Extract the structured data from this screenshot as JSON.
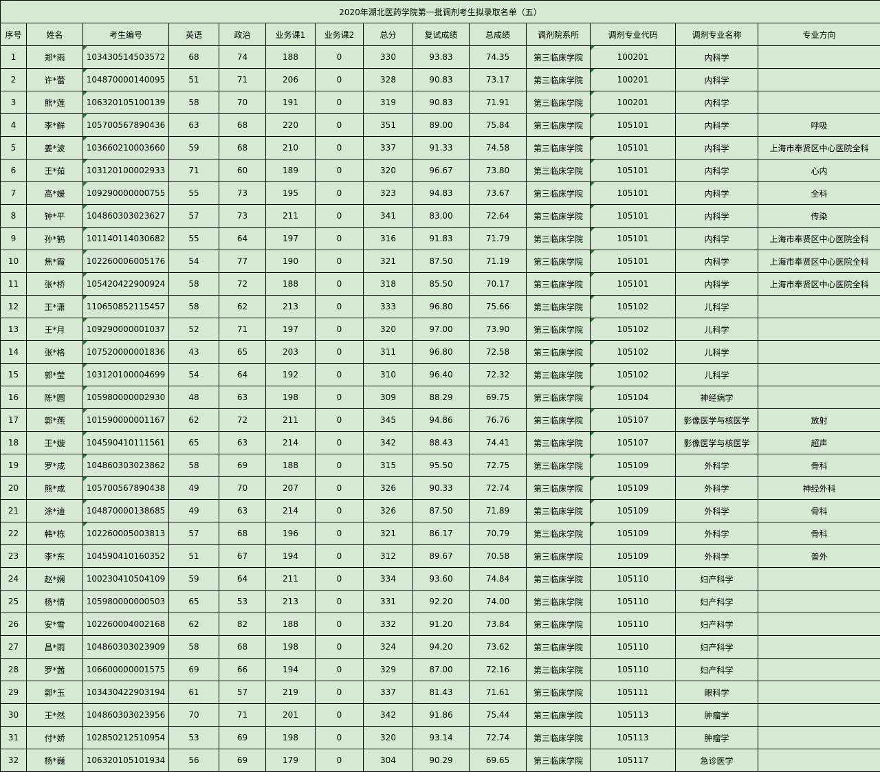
{
  "title": "2020年湖北医药学院第一批调剂考生拟录取名单（五）",
  "colors": {
    "sheet_background": "#d6ead3",
    "grid_line": "#000000",
    "text": "#000000",
    "text_indicator_triangle": "#1e7e24"
  },
  "table": {
    "columns": [
      "序号",
      "姓名",
      "考生编号",
      "英语",
      "政治",
      "业务课1",
      "业务课2",
      "总分",
      "复试成绩",
      "总成绩",
      "调剂院系所",
      "调剂专业代码",
      "调剂专业名称",
      "专业方向"
    ],
    "column_keys": [
      "index",
      "name",
      "candidate-id",
      "english",
      "politics",
      "course1",
      "course2",
      "total-score",
      "retest-score",
      "final-score",
      "department",
      "major-code",
      "major-name",
      "major-direction"
    ],
    "rows": [
      {
        "indicator": true,
        "cells": [
          "1",
          "郑*雨",
          "103430514503572",
          "68",
          "74",
          "188",
          "0",
          "330",
          "93.83",
          "74.35",
          "第三临床学院",
          "100201",
          "内科学",
          ""
        ]
      },
      {
        "indicator": true,
        "cells": [
          "2",
          "许*蕾",
          "104870000140095",
          "51",
          "71",
          "206",
          "0",
          "328",
          "90.83",
          "73.17",
          "第三临床学院",
          "100201",
          "内科学",
          ""
        ]
      },
      {
        "indicator": true,
        "cells": [
          "3",
          "熊*莲",
          "106320105100139",
          "58",
          "70",
          "191",
          "0",
          "319",
          "90.83",
          "71.91",
          "第三临床学院",
          "100201",
          "内科学",
          ""
        ]
      },
      {
        "indicator": true,
        "cells": [
          "4",
          "李*鲜",
          "105700567890436",
          "63",
          "68",
          "220",
          "0",
          "351",
          "89.00",
          "75.84",
          "第三临床学院",
          "105101",
          "内科学",
          "呼吸"
        ]
      },
      {
        "indicator": true,
        "cells": [
          "5",
          "姜*波",
          "103660210003660",
          "59",
          "68",
          "210",
          "0",
          "337",
          "91.33",
          "74.58",
          "第三临床学院",
          "105101",
          "内科学",
          "上海市奉贤区中心医院全科"
        ]
      },
      {
        "indicator": true,
        "cells": [
          "6",
          "王*茹",
          "103120100002933",
          "71",
          "60",
          "189",
          "0",
          "320",
          "96.67",
          "73.80",
          "第三临床学院",
          "105101",
          "内科学",
          "心内"
        ]
      },
      {
        "indicator": true,
        "cells": [
          "7",
          "高*媛",
          "109290000000755",
          "55",
          "73",
          "195",
          "0",
          "323",
          "94.83",
          "73.67",
          "第三临床学院",
          "105101",
          "内科学",
          "全科"
        ]
      },
      {
        "indicator": true,
        "cells": [
          "8",
          "钟*平",
          "104860303023627",
          "57",
          "73",
          "211",
          "0",
          "341",
          "83.00",
          "72.64",
          "第三临床学院",
          "105101",
          "内科学",
          "传染"
        ]
      },
      {
        "indicator": true,
        "cells": [
          "9",
          "孙*鹤",
          "101140114030682",
          "55",
          "64",
          "197",
          "0",
          "316",
          "91.83",
          "71.79",
          "第三临床学院",
          "105101",
          "内科学",
          "上海市奉贤区中心医院全科"
        ]
      },
      {
        "indicator": true,
        "cells": [
          "10",
          "焦*霞",
          "102260006005176",
          "54",
          "77",
          "190",
          "0",
          "321",
          "87.50",
          "71.19",
          "第三临床学院",
          "105101",
          "内科学",
          "上海市奉贤区中心医院全科"
        ]
      },
      {
        "indicator": true,
        "cells": [
          "11",
          "张*桥",
          "105420422900924",
          "58",
          "72",
          "188",
          "0",
          "318",
          "85.50",
          "70.17",
          "第三临床学院",
          "105101",
          "内科学",
          "上海市奉贤区中心医院全科"
        ]
      },
      {
        "indicator": true,
        "cells": [
          "12",
          "王*潇",
          "110650852115457",
          "58",
          "62",
          "213",
          "0",
          "333",
          "96.80",
          "75.66",
          "第三临床学院",
          "105102",
          "儿科学",
          ""
        ]
      },
      {
        "indicator": true,
        "cells": [
          "13",
          "王*月",
          "109290000001037",
          "52",
          "71",
          "197",
          "0",
          "320",
          "97.00",
          "73.90",
          "第三临床学院",
          "105102",
          "儿科学",
          ""
        ]
      },
      {
        "indicator": true,
        "cells": [
          "14",
          "张*格",
          "107520000001836",
          "43",
          "65",
          "203",
          "0",
          "311",
          "96.80",
          "72.58",
          "第三临床学院",
          "105102",
          "儿科学",
          ""
        ]
      },
      {
        "indicator": true,
        "cells": [
          "15",
          "郭*莹",
          "103120100004699",
          "54",
          "64",
          "192",
          "0",
          "310",
          "96.40",
          "72.32",
          "第三临床学院",
          "105102",
          "儿科学",
          ""
        ]
      },
      {
        "indicator": true,
        "cells": [
          "16",
          "陈*圆",
          "105980000002930",
          "48",
          "63",
          "198",
          "0",
          "309",
          "88.29",
          "69.75",
          "第三临床学院",
          "105104",
          "神经病学",
          ""
        ]
      },
      {
        "indicator": true,
        "cells": [
          "17",
          "郭*燕",
          "101590000001167",
          "62",
          "72",
          "211",
          "0",
          "345",
          "94.86",
          "76.76",
          "第三临床学院",
          "105107",
          "影像医学与核医学",
          "放射"
        ]
      },
      {
        "indicator": true,
        "cells": [
          "18",
          "王*嫙",
          "104590410111561",
          "65",
          "63",
          "214",
          "0",
          "342",
          "88.43",
          "74.41",
          "第三临床学院",
          "105107",
          "影像医学与核医学",
          "超声"
        ]
      },
      {
        "indicator": true,
        "cells": [
          "19",
          "罗*成",
          "104860303023862",
          "58",
          "69",
          "188",
          "0",
          "315",
          "95.50",
          "72.75",
          "第三临床学院",
          "105109",
          "外科学",
          "骨科"
        ]
      },
      {
        "indicator": true,
        "cells": [
          "20",
          "熊*成",
          "105700567890438",
          "49",
          "70",
          "207",
          "0",
          "326",
          "90.33",
          "72.74",
          "第三临床学院",
          "105109",
          "外科学",
          "神经外科"
        ]
      },
      {
        "indicator": true,
        "cells": [
          "21",
          "涂*迪",
          "104870000138685",
          "49",
          "63",
          "214",
          "0",
          "326",
          "87.50",
          "71.89",
          "第三临床学院",
          "105109",
          "外科学",
          "骨科"
        ]
      },
      {
        "indicator": true,
        "cells": [
          "22",
          "韩*栋",
          "102260005003813",
          "57",
          "68",
          "196",
          "0",
          "321",
          "86.17",
          "70.79",
          "第三临床学院",
          "105109",
          "外科学",
          "骨科"
        ]
      },
      {
        "indicator": false,
        "cells": [
          "23",
          "李*东",
          "104590410160352",
          "51",
          "67",
          "194",
          "0",
          "312",
          "89.67",
          "70.58",
          "第三临床学院",
          "105109",
          "外科学",
          "普外"
        ]
      },
      {
        "indicator": false,
        "cells": [
          "24",
          "赵*娴",
          "100230410504109",
          "59",
          "64",
          "211",
          "0",
          "334",
          "93.60",
          "74.84",
          "第三临床学院",
          "105110",
          "妇产科学",
          ""
        ]
      },
      {
        "indicator": false,
        "cells": [
          "25",
          "杨*倩",
          "105980000000503",
          "65",
          "53",
          "213",
          "0",
          "331",
          "92.20",
          "74.00",
          "第三临床学院",
          "105110",
          "妇产科学",
          ""
        ]
      },
      {
        "indicator": false,
        "cells": [
          "26",
          "安*雪",
          "102260004002168",
          "62",
          "82",
          "188",
          "0",
          "332",
          "91.20",
          "73.84",
          "第三临床学院",
          "105110",
          "妇产科学",
          ""
        ]
      },
      {
        "indicator": false,
        "cells": [
          "27",
          "昌*雨",
          "104860303023909",
          "58",
          "68",
          "198",
          "0",
          "324",
          "94.20",
          "73.62",
          "第三临床学院",
          "105110",
          "妇产科学",
          ""
        ]
      },
      {
        "indicator": false,
        "cells": [
          "28",
          "罗*茜",
          "106600000001575",
          "69",
          "66",
          "194",
          "0",
          "329",
          "87.00",
          "72.16",
          "第三临床学院",
          "105110",
          "妇产科学",
          ""
        ]
      },
      {
        "indicator": false,
        "cells": [
          "29",
          "郭*玉",
          "103430422903194",
          "61",
          "57",
          "219",
          "0",
          "337",
          "81.43",
          "71.61",
          "第三临床学院",
          "105111",
          "眼科学",
          ""
        ]
      },
      {
        "indicator": false,
        "cells": [
          "30",
          "王*然",
          "104860303023956",
          "70",
          "71",
          "201",
          "0",
          "342",
          "91.86",
          "75.44",
          "第三临床学院",
          "105113",
          "肿瘤学",
          ""
        ]
      },
      {
        "indicator": false,
        "cells": [
          "31",
          "付*娇",
          "102850212510954",
          "53",
          "69",
          "198",
          "0",
          "320",
          "93.14",
          "72.74",
          "第三临床学院",
          "105113",
          "肿瘤学",
          ""
        ]
      },
      {
        "indicator": false,
        "cells": [
          "32",
          "杨*巍",
          "106320105101934",
          "56",
          "69",
          "179",
          "0",
          "304",
          "90.29",
          "69.65",
          "第三临床学院",
          "105117",
          "急诊医学",
          ""
        ]
      }
    ]
  }
}
